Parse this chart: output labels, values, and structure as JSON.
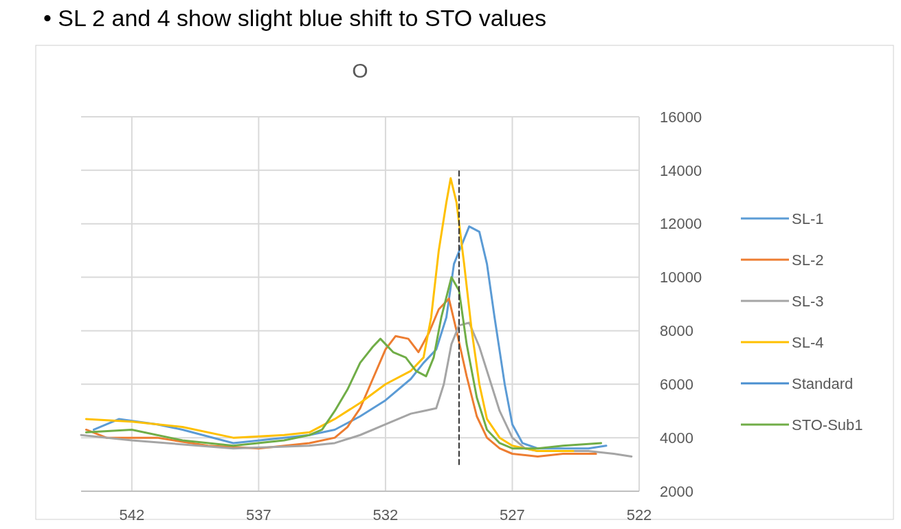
{
  "chart_data": {
    "type": "line",
    "title": "O",
    "annotations": [
      "• SL 2 and 4 show slight blue shift to STO values"
    ],
    "xlim": [
      544,
      522
    ],
    "xticks": [
      542,
      537,
      532,
      527,
      522
    ],
    "ylim": [
      2000,
      16000
    ],
    "yticks": [
      2000,
      4000,
      6000,
      8000,
      10000,
      12000,
      14000,
      16000
    ],
    "grid": true,
    "legend": "right",
    "marker": "none",
    "line_style": "solid",
    "series": [
      {
        "name": "SL-1",
        "color": "#5b9bd5",
        "x": [
          543.5,
          542.5,
          541,
          540,
          538,
          536,
          535,
          534,
          533,
          532,
          531,
          530.5,
          530,
          529.6,
          529.3,
          529,
          528.7,
          528.3,
          528,
          527.7,
          527.3,
          527,
          526.6,
          526,
          524,
          523.3
        ],
        "values": [
          4300,
          4700,
          4500,
          4300,
          3800,
          4000,
          4100,
          4300,
          4800,
          5400,
          6200,
          6800,
          7300,
          8500,
          10500,
          11200,
          11900,
          11700,
          10500,
          8500,
          6000,
          4500,
          3800,
          3600,
          3600,
          3700
        ]
      },
      {
        "name": "SL-2",
        "color": "#ed7d31",
        "x": [
          543.8,
          543,
          541,
          539,
          537,
          535,
          534,
          533.5,
          533,
          532.5,
          532,
          531.6,
          531.1,
          530.7,
          530.3,
          529.9,
          529.5,
          529.2,
          528.8,
          528.4,
          528,
          527.5,
          527,
          526,
          525,
          523.7
        ],
        "values": [
          4300,
          4000,
          4000,
          3700,
          3600,
          3800,
          4000,
          4400,
          5100,
          6200,
          7300,
          7800,
          7700,
          7200,
          7900,
          8800,
          9200,
          8000,
          6300,
          4800,
          4000,
          3600,
          3400,
          3300,
          3400,
          3400
        ]
      },
      {
        "name": "SL-3",
        "color": "#a5a5a5",
        "x": [
          544,
          542,
          538,
          535,
          534,
          533,
          532,
          531,
          530.5,
          530,
          529.7,
          529.4,
          529.1,
          528.7,
          528.3,
          528,
          527.5,
          527,
          526.5,
          526,
          524,
          523,
          522.3
        ],
        "values": [
          4100,
          3900,
          3600,
          3700,
          3800,
          4100,
          4500,
          4900,
          5000,
          5100,
          6000,
          7500,
          8200,
          8300,
          7400,
          6500,
          5000,
          4000,
          3600,
          3500,
          3500,
          3400,
          3300
        ]
      },
      {
        "name": "SL-4",
        "color": "#ffc000",
        "x": [
          543.8,
          542,
          540,
          538,
          536,
          535,
          534,
          533,
          532,
          531,
          530.5,
          530.2,
          529.9,
          529.6,
          529.43,
          529.2,
          528.9,
          528.6,
          528.3,
          528,
          527.5,
          527,
          526,
          525,
          524.6
        ],
        "values": [
          4700,
          4600,
          4400,
          4000,
          4100,
          4200,
          4700,
          5300,
          6000,
          6500,
          7000,
          8500,
          11000,
          12800,
          13700,
          12800,
          10500,
          8000,
          6000,
          4700,
          4000,
          3700,
          3500,
          3500,
          3500
        ]
      },
      {
        "name": "Standard",
        "color": "#4a8fd0"
      },
      {
        "name": "STO-Sub1",
        "color": "#70ad47",
        "x": [
          543.8,
          542,
          540,
          538,
          536,
          535,
          534.5,
          534,
          533.5,
          533,
          532.5,
          532.2,
          531.7,
          531.2,
          530.8,
          530.4,
          530.1,
          529.8,
          529.4,
          529.1,
          528.8,
          528.4,
          528,
          527.5,
          527,
          526,
          525,
          523.5
        ],
        "values": [
          4200,
          4300,
          3900,
          3700,
          3900,
          4100,
          4300,
          5000,
          5800,
          6800,
          7400,
          7700,
          7200,
          7000,
          6500,
          6300,
          7000,
          8500,
          10000,
          9500,
          7500,
          5500,
          4300,
          3800,
          3600,
          3600,
          3700,
          3800
        ]
      },
      {
        "color": "#333333",
        "line_style": "dashed",
        "x": [
          529.1,
          529.1
        ],
        "values": [
          3000,
          14000
        ]
      }
    ]
  }
}
